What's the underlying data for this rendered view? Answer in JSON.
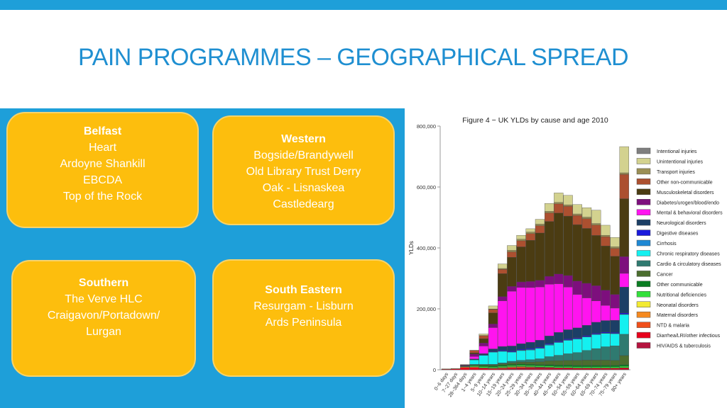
{
  "slide": {
    "title": "PAIN PROGRAMMES – GEOGRAPHICAL SPREAD",
    "accent_color": "#1e9fd9",
    "card_color": "#fdbe0d"
  },
  "cards": [
    {
      "heading": "Belfast",
      "lines": [
        "Heart",
        "Ardoyne Shankill",
        "EBCDA",
        "Top of the Rock"
      ]
    },
    {
      "heading": "Western",
      "lines": [
        "Bogside/Brandywell",
        "Old Library Trust Derry",
        "Oak - Lisnaskea",
        "Castledearg"
      ]
    },
    {
      "heading": "Southern",
      "lines": [
        "The Verve HLC",
        "Craigavon/Portadown/",
        "Lurgan"
      ]
    },
    {
      "heading": "South Eastern",
      "lines": [
        "Resurgam - Lisburn",
        "Ards Peninsula"
      ]
    }
  ],
  "chart_data": {
    "type": "bar",
    "stacked": true,
    "title": "Figure 4 − UK YLDs by cause and age 2010",
    "ylabel": "YLDs",
    "xlabel": "",
    "ylim": [
      0,
      800000
    ],
    "yticks": [
      0,
      200000,
      400000,
      600000,
      800000
    ],
    "ytick_labels": [
      "0",
      "200,000",
      "400,000",
      "600,000",
      "800,000"
    ],
    "grid": false,
    "legend_position": "right",
    "categories": [
      "0−6 days",
      "7−27 days",
      "28−364 days",
      "1−4 years",
      "5−9 years",
      "10−14 years",
      "15−19 years",
      "20−24 years",
      "25−29 years",
      "30−34 years",
      "35−39 years",
      "40−44 years",
      "45−49 years",
      "50−54 years",
      "55−59 years",
      "60−64 years",
      "65−69 years",
      "70−74 years",
      "75−79 years",
      "80+ years"
    ],
    "series": [
      {
        "name": "HIV/AIDS & tuberculosis",
        "color": "#b5133e",
        "values": [
          0,
          0,
          0,
          0,
          0,
          0,
          500,
          2000,
          3000,
          3000,
          3000,
          3000,
          2000,
          2000,
          1000,
          1000,
          1000,
          1000,
          1000,
          1000
        ]
      },
      {
        "name": "Diarrhea/LRI/other infectious",
        "color": "#e8001c",
        "values": [
          2000,
          3000,
          8000,
          8000,
          5000,
          4000,
          4000,
          4000,
          4000,
          4000,
          4000,
          4000,
          4000,
          4000,
          4000,
          4000,
          4000,
          4000,
          4000,
          5000
        ]
      },
      {
        "name": "NTD & malaria",
        "color": "#f04e1a",
        "values": [
          0,
          0,
          0,
          0,
          0,
          0,
          0,
          0,
          0,
          0,
          0,
          0,
          0,
          0,
          0,
          0,
          0,
          0,
          0,
          0
        ]
      },
      {
        "name": "Maternal disorders",
        "color": "#f5891f",
        "values": [
          0,
          0,
          0,
          0,
          0,
          0,
          2000,
          3000,
          3000,
          2000,
          1000,
          500,
          0,
          0,
          0,
          0,
          0,
          0,
          0,
          0
        ]
      },
      {
        "name": "Neonatal disorders",
        "color": "#f2ea32",
        "values": [
          1000,
          1000,
          2000,
          2000,
          1500,
          1000,
          1000,
          1000,
          1000,
          1000,
          1000,
          500,
          500,
          500,
          500,
          500,
          500,
          500,
          500,
          500
        ]
      },
      {
        "name": "Nutritional deficiencies",
        "color": "#33e03b",
        "values": [
          0,
          0,
          1000,
          3000,
          4000,
          4000,
          4000,
          4000,
          4000,
          4000,
          4000,
          4000,
          4000,
          4000,
          4000,
          4000,
          4000,
          4000,
          4000,
          5000
        ]
      },
      {
        "name": "Other communicable",
        "color": "#0a7d22",
        "values": [
          0,
          0,
          500,
          3000,
          4000,
          4000,
          4000,
          4000,
          4000,
          4000,
          4000,
          5000,
          5000,
          5000,
          5000,
          5000,
          5000,
          5000,
          5000,
          5000
        ]
      },
      {
        "name": "Cancer",
        "color": "#4b6e2e",
        "values": [
          0,
          0,
          0,
          1000,
          2000,
          3000,
          4000,
          5000,
          6000,
          7000,
          9000,
          12000,
          14000,
          15000,
          16000,
          17000,
          17000,
          17000,
          16000,
          30000
        ]
      },
      {
        "name": "Cardio & circulatory diseases",
        "color": "#2f7a70",
        "values": [
          0,
          0,
          0,
          500,
          1000,
          2000,
          3000,
          5000,
          6000,
          8000,
          10000,
          14000,
          18000,
          22000,
          26000,
          32000,
          38000,
          44000,
          48000,
          70000
        ]
      },
      {
        "name": "Chronic respiratory diseases",
        "color": "#14f0f0",
        "values": [
          0,
          0,
          1000,
          15000,
          30000,
          40000,
          38000,
          30000,
          32000,
          32000,
          34000,
          38000,
          42000,
          44000,
          44000,
          44000,
          46000,
          44000,
          40000,
          65000
        ]
      },
      {
        "name": "Cirrhosis",
        "color": "#1f88d4",
        "values": [
          0,
          0,
          0,
          0,
          0,
          500,
          1000,
          1000,
          1500,
          2000,
          2000,
          2000,
          2000,
          2000,
          2000,
          1500,
          1500,
          1000,
          1000,
          1000
        ]
      },
      {
        "name": "Digestive diseases",
        "color": "#1a1adc",
        "values": [
          0,
          0,
          500,
          1000,
          1500,
          2000,
          3000,
          3000,
          3000,
          3000,
          3000,
          3000,
          3000,
          3000,
          3000,
          3000,
          3000,
          3000,
          3000,
          4000
        ]
      },
      {
        "name": "Neurological disorders",
        "color": "#1c3f66",
        "values": [
          0,
          0,
          0,
          2000,
          4000,
          8000,
          12000,
          16000,
          18000,
          20000,
          22000,
          25000,
          28000,
          30000,
          32000,
          34000,
          36000,
          38000,
          40000,
          85000
        ]
      },
      {
        "name": "Mental & behavioral disorders",
        "color": "#ff14ef",
        "values": [
          0,
          0,
          0,
          8000,
          25000,
          70000,
          150000,
          180000,
          185000,
          180000,
          175000,
          170000,
          160000,
          140000,
          110000,
          90000,
          70000,
          50000,
          40000,
          45000
        ]
      },
      {
        "name": "Diabetes/urogen/blood/endo",
        "color": "#7d0f7d",
        "values": [
          0,
          0,
          2000,
          8000,
          10000,
          12000,
          14000,
          16000,
          18000,
          20000,
          22000,
          26000,
          32000,
          38000,
          44000,
          48000,
          50000,
          50000,
          45000,
          55000
        ]
      },
      {
        "name": "Musculoskeletal disorders",
        "color": "#4b3c12",
        "values": [
          0,
          0,
          1000,
          4000,
          14000,
          36000,
          75000,
          95000,
          115000,
          135000,
          155000,
          180000,
          200000,
          195000,
          185000,
          180000,
          165000,
          145000,
          125000,
          190000
        ]
      },
      {
        "name": "Other non-communicable",
        "color": "#ac5030",
        "values": [
          0,
          0,
          1000,
          8000,
          10000,
          12000,
          14000,
          18000,
          20000,
          22000,
          24000,
          28000,
          30000,
          32000,
          30000,
          32000,
          34000,
          30000,
          26000,
          80000
        ]
      },
      {
        "name": "Transport injuries",
        "color": "#9b8f55",
        "values": [
          0,
          0,
          0,
          0,
          500,
          1000,
          3000,
          5000,
          5000,
          5000,
          5000,
          5000,
          5000,
          5000,
          5000,
          5000,
          5000,
          5000,
          5000,
          5000
        ]
      },
      {
        "name": "Unintentional injuries",
        "color": "#d3d28f",
        "values": [
          0,
          0,
          0,
          500,
          5000,
          10000,
          15000,
          16000,
          13000,
          11000,
          16000,
          26000,
          31000,
          31000,
          31000,
          31000,
          44000,
          33000,
          31000,
          86000
        ]
      },
      {
        "name": "Intentional injuries",
        "color": "#7f7f7f",
        "values": [
          0,
          0,
          0,
          0,
          0,
          0,
          0,
          0,
          0,
          0,
          0,
          0,
          0,
          0,
          0,
          0,
          0,
          0,
          0,
          0
        ]
      }
    ]
  }
}
